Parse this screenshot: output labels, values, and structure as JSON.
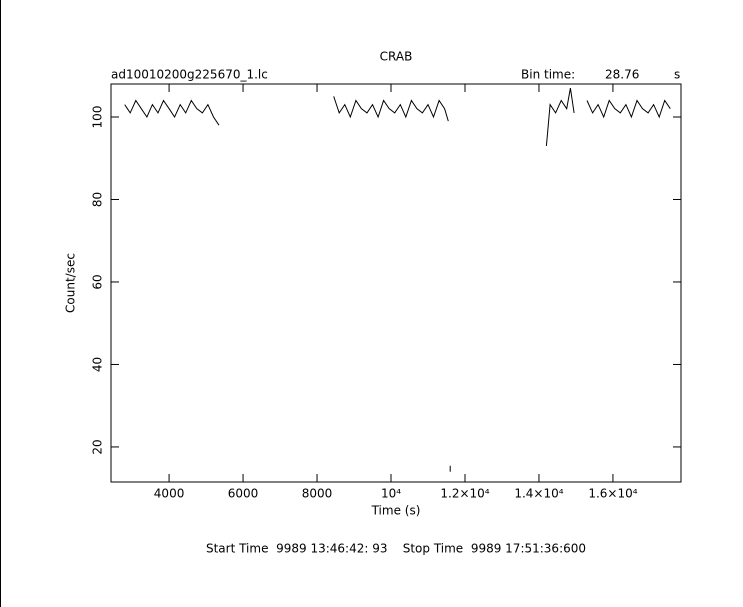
{
  "chart_data": {
    "type": "line",
    "title": "CRAB",
    "file_label": "ad10010200g225670_1.lc",
    "bin_label": "Bin time:",
    "bin_value": "28.76",
    "bin_unit": "s",
    "x_label": "Time (s)",
    "y_label": "Count/sec",
    "footer": "Start Time  9989 13:46:42: 93    Stop Time  9989 17:51:36:600",
    "color": "#000000",
    "x": [
      2800,
      2950,
      3100,
      3250,
      3400,
      3550,
      3700,
      3850,
      4000,
      4150,
      4300,
      4450,
      4600,
      4750,
      4900,
      5050,
      5200,
      5350,
      6000,
      8450,
      8600,
      8750,
      8900,
      9050,
      9200,
      9350,
      9500,
      9650,
      9800,
      9950,
      10100,
      10250,
      10400,
      10550,
      10700,
      10850,
      11000,
      11150,
      11300,
      11450,
      11550,
      11575,
      11600,
      13000,
      14200,
      14300,
      14450,
      14600,
      14750,
      14850,
      14950,
      15100,
      15300,
      15450,
      15600,
      15750,
      15900,
      16050,
      16200,
      16350,
      16500,
      16650,
      16800,
      16950,
      17100,
      17250,
      17400,
      17550
    ],
    "values": [
      103,
      101,
      104,
      102,
      100,
      103,
      101,
      104,
      102,
      100,
      103,
      101,
      104,
      102,
      101,
      103,
      100,
      98,
      null,
      105,
      101,
      103,
      100,
      104,
      102,
      101,
      103,
      100,
      104,
      102,
      101,
      103,
      100,
      104,
      102,
      101,
      103,
      100,
      104,
      102,
      99,
      null,
      14,
      null,
      93,
      103,
      101,
      104,
      102,
      107,
      101,
      null,
      104,
      101,
      103,
      100,
      104,
      102,
      101,
      103,
      100,
      104,
      102,
      101,
      103,
      100,
      104,
      102
    ],
    "xlim": [
      2430,
      17840
    ],
    "ylim": [
      11.5,
      108
    ],
    "xticks": [
      4000,
      6000,
      8000,
      {
        "value": 10000,
        "label": "10⁴"
      },
      {
        "value": 12000,
        "label": "1.2×10⁴"
      },
      {
        "value": 14000,
        "label": "1.4×10⁴"
      },
      {
        "value": 16000,
        "label": "1.6×10⁴"
      }
    ],
    "yticks": [
      20,
      40,
      60,
      80,
      100
    ]
  }
}
